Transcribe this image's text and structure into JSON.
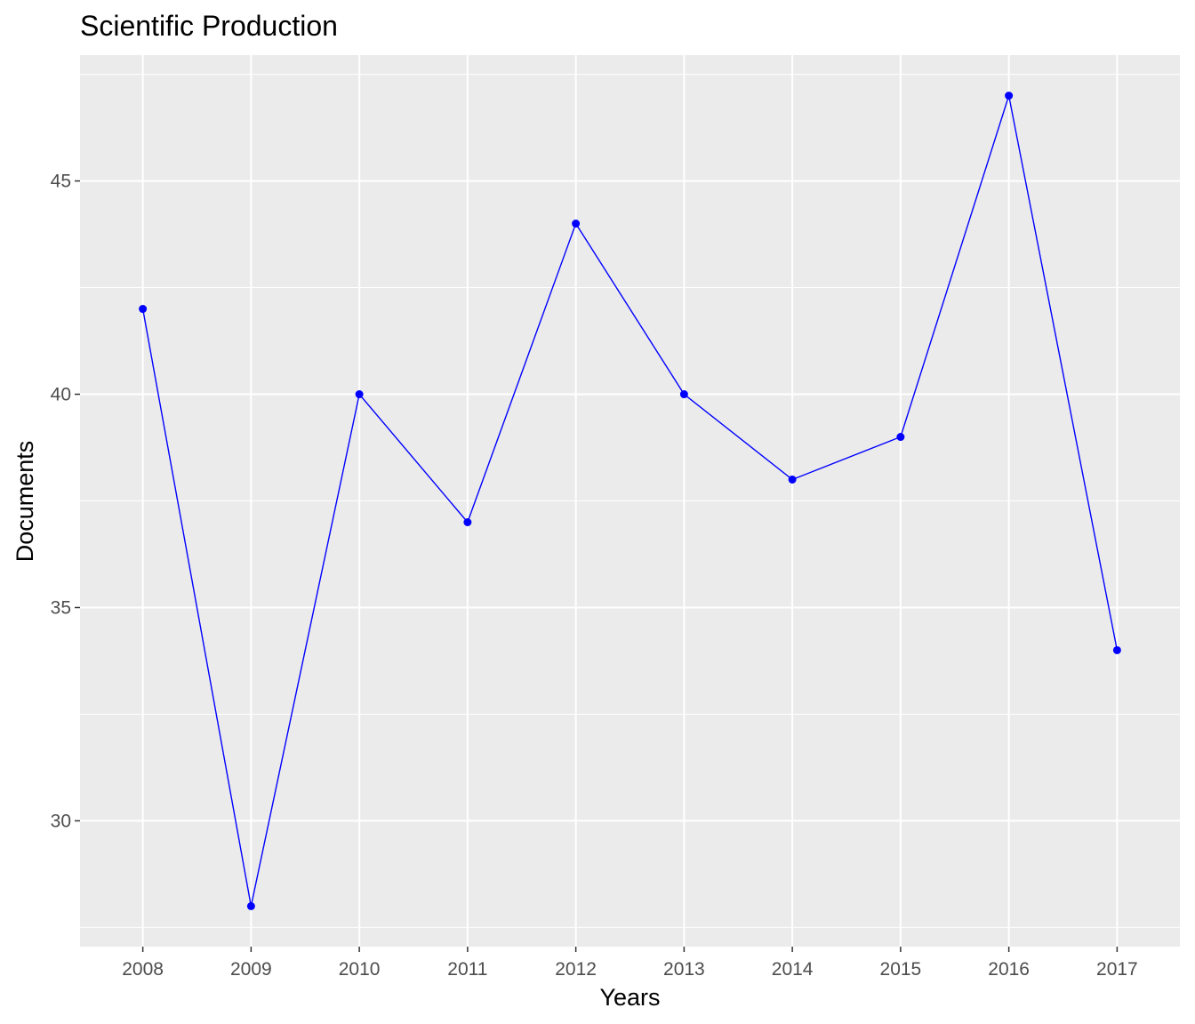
{
  "chart_data": {
    "type": "line",
    "title": "Scientific Production",
    "xlabel": "Years",
    "ylabel": "Documents",
    "x": [
      2008,
      2009,
      2010,
      2011,
      2012,
      2013,
      2014,
      2015,
      2016,
      2017
    ],
    "x_tick_labels": [
      "2008",
      "2009",
      "2010",
      "2011",
      "2012",
      "2013",
      "2014",
      "2015",
      "2016",
      "2017"
    ],
    "y_ticks": [
      30,
      35,
      40,
      45
    ],
    "y_tick_labels": [
      "30",
      "35",
      "40",
      "45"
    ],
    "series": [
      {
        "values": [
          42,
          28,
          40,
          37,
          44,
          40,
          38,
          39,
          47,
          34
        ],
        "color": "#0000ff"
      }
    ],
    "xlim": [
      2007.42,
      2017.58
    ],
    "ylim": [
      27.05,
      47.95
    ],
    "grid": true,
    "panel_background": "#ebebeb",
    "grid_color": "#ffffff"
  }
}
